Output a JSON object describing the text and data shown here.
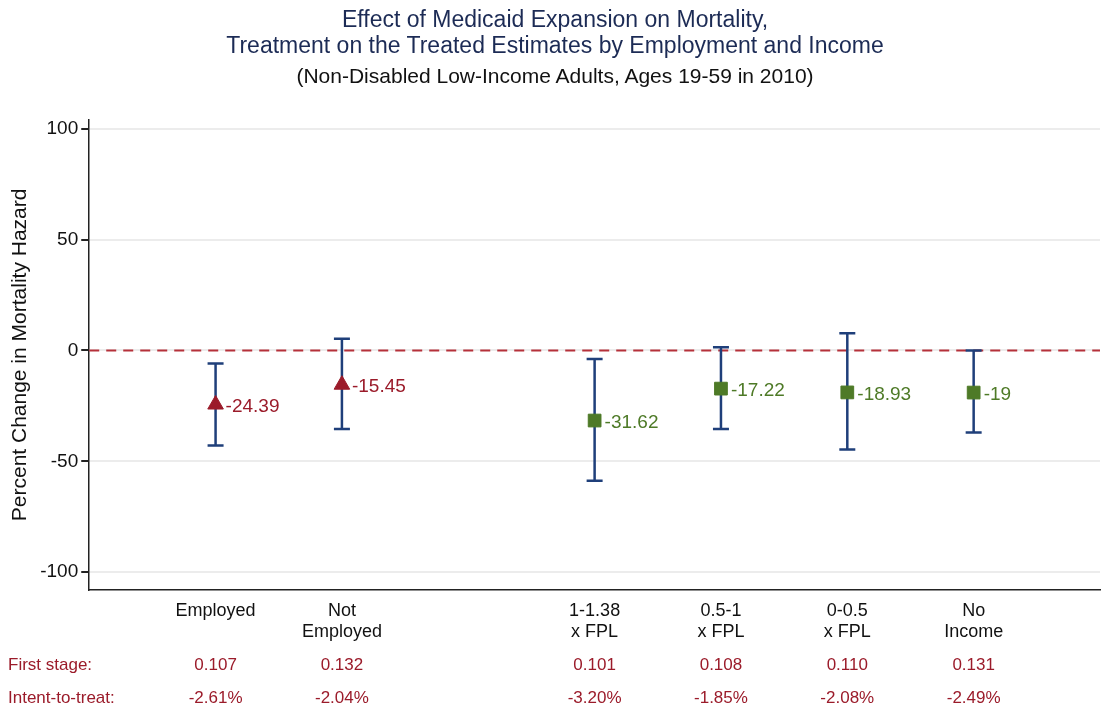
{
  "chart_data": {
    "type": "scatter",
    "title": "Effect of Medicaid Expansion on Mortality, Treatment on the Treated Estimates by Employment and Income",
    "subtitle": "(Non-Disabled Low-Income Adults, Ages 19-59 in 2010)",
    "ylabel": "Percent Change in Mortality Hazard",
    "categories": [
      null,
      "Employed",
      "Not Employed",
      null,
      "1-1.38 x FPL",
      "0.5-1 x FPL",
      "0-0.5 x FPL",
      "No Income",
      null
    ],
    "series": [
      {
        "marker": "triangle",
        "color": "#9b1b2a",
        "values": [
          null,
          -24.39,
          -15.45,
          null,
          null,
          null,
          null,
          null,
          null
        ],
        "errors": [
          null,
          [
            -42.9,
            -5.9
          ],
          [
            -35.4,
            5.3
          ],
          null,
          null,
          null,
          null,
          null,
          null
        ]
      },
      {
        "marker": "square",
        "color": "#4e7a27",
        "values": [
          null,
          null,
          null,
          null,
          -31.62,
          -17.22,
          -18.93,
          -19,
          null
        ],
        "errors": [
          null,
          null,
          null,
          null,
          [
            -58.8,
            -3.9
          ],
          [
            -35.4,
            1.5
          ],
          [
            -44.7,
            7.8
          ],
          [
            -37,
            0
          ],
          null
        ]
      }
    ],
    "data_labels": true,
    "ylim": [
      -108,
      104
    ],
    "yticks": [
      -100,
      -50,
      0,
      50,
      100
    ],
    "grid": "y",
    "legend": false,
    "ref_lines": [
      {
        "axis": "y",
        "value": 0,
        "color": "#b5313a",
        "line_style": "dashed"
      }
    ],
    "annotations": [
      "First stage:",
      "0.107",
      "0.132",
      "0.101",
      "0.108",
      "0.110",
      "0.131",
      "Intent-to-treat:",
      "-2.61%",
      "-2.04%",
      "-3.20%",
      "-1.85%",
      "-2.08%",
      "-2.49%"
    ]
  }
}
